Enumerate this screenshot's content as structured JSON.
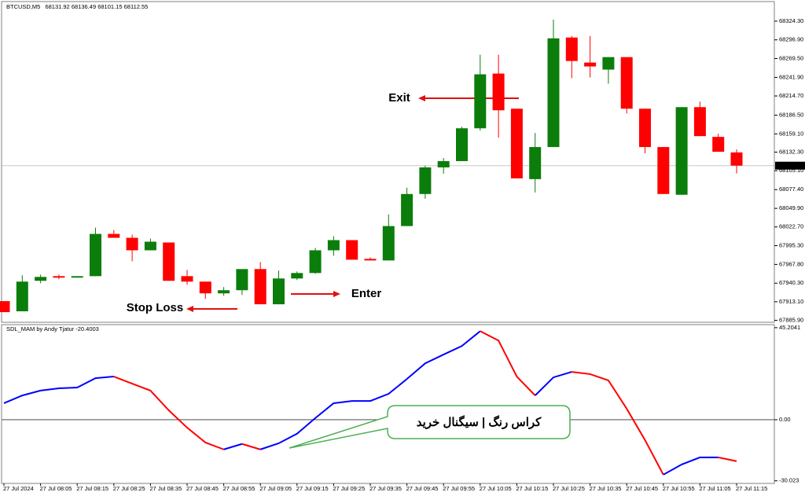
{
  "chart_data": [
    {
      "type": "candlestick",
      "title": "BTCUSD,M5",
      "categories": [
        "27 Jul 2024",
        null,
        "27 Jul 08:05",
        null,
        "27 Jul 08:15",
        null,
        "27 Jul 08:25",
        null,
        "27 Jul 08:35",
        null,
        "27 Jul 08:45",
        null,
        "27 Jul 08:55",
        null,
        "27 Jul 09:05",
        null,
        "27 Jul 09:15",
        null,
        "27 Jul 09:25",
        null,
        "27 Jul 09:35",
        null,
        "27 Jul 09:45",
        null,
        "27 Jul 09:55",
        null,
        "27 Jul 10:05",
        null,
        "27 Jul 10:15",
        null,
        "27 Jul 10:25",
        null,
        "27 Jul 10:35",
        null,
        "27 Jul 10:45",
        null,
        "27 Jul 10:55",
        null,
        "27 Jul 11:05",
        null,
        "27 Jul 11:15"
      ],
      "open": [
        67914.0,
        67899.1,
        67943.8,
        67950.6,
        67948.4,
        67950.6,
        68012.5,
        68006.8,
        67988.5,
        67999.9,
        67950.6,
        67942.6,
        67925.4,
        67930.0,
        67961.0,
        67909.4,
        67947.2,
        67955.2,
        67988.5,
        68003.4,
        67975.9,
        67973.6,
        68024.0,
        68071.0,
        68110.0,
        68119.2,
        68167.3,
        68247.5,
        68196.0,
        68092.8,
        68139.8,
        68300.3,
        68263.6,
        68253.3,
        68271.6,
        68196.0,
        68139.8,
        68069.9,
        68198.3,
        68154.7,
        68131.92
      ],
      "high": [
        67914.0,
        67951.8,
        67952.9,
        67952.9,
        67950.6,
        68021.7,
        68018.3,
        68011.4,
        68005.7,
        67999.9,
        67959.8,
        67942.6,
        67934.6,
        67961.0,
        67971.3,
        67958.7,
        67957.5,
        67991.9,
        68009.1,
        68003.4,
        67978.2,
        68041.2,
        68080.2,
        68112.3,
        68123.7,
        68169.6,
        68275.1,
        68275.1,
        68196.0,
        68160.4,
        68326.6,
        68302.6,
        68302.6,
        68271.6,
        68271.6,
        68196.0,
        68139.8,
        68198.3,
        68206.3,
        68159.3,
        68136.49
      ],
      "low": [
        67897.9,
        67899.1,
        67940.3,
        67946.1,
        67948.4,
        67950.6,
        68006.8,
        67972.4,
        67988.5,
        67943.8,
        67938.0,
        67917.4,
        67922.0,
        67923.1,
        67909.4,
        67909.4,
        67944.9,
        67954.1,
        67980.5,
        67974.7,
        67973.6,
        67973.6,
        68024.0,
        68064.1,
        68100.8,
        68119.2,
        68163.9,
        68153.5,
        68093.9,
        68073.3,
        68139.8,
        68240.7,
        68241.8,
        68232.6,
        68189.1,
        68130.6,
        68071.0,
        68069.9,
        68155.8,
        68132.9,
        68101.15
      ],
      "close": [
        67897.9,
        67942.6,
        67949.5,
        67948.4,
        67950.6,
        68012.5,
        68006.8,
        67988.5,
        68001.1,
        67943.8,
        67942.6,
        67925.4,
        67930.0,
        67961.0,
        67909.4,
        67947.2,
        67955.2,
        67988.5,
        68003.4,
        67974.7,
        67973.6,
        68024.0,
        68071.0,
        68110.0,
        68119.2,
        68167.3,
        68246.4,
        68193.7,
        68093.9,
        68139.8,
        68299.1,
        68265.9,
        68257.9,
        68271.6,
        68196.0,
        68139.8,
        68071.0,
        68198.3,
        68155.8,
        68132.9,
        68112.55
      ],
      "up_color": "#0b7d0b",
      "down_color": "#ff0000",
      "ylim": [
        67883,
        68353
      ],
      "yticks": [
        {
          "value": 68324.3,
          "label": "68324.30"
        },
        {
          "value": 68296.9,
          "label": "68296.90"
        },
        {
          "value": 68269.5,
          "label": "68269.50"
        },
        {
          "value": 68241.9,
          "label": "68241.90"
        },
        {
          "value": 68214.7,
          "label": "68214.70"
        },
        {
          "value": 68186.5,
          "label": "68186.50"
        },
        {
          "value": 68159.1,
          "label": "68159.10"
        },
        {
          "value": 68132.3,
          "label": "68132.30"
        },
        {
          "value": 68105.1,
          "label": "68105.10"
        },
        {
          "value": 68077.4,
          "label": "68077.40"
        },
        {
          "value": 68049.9,
          "label": "68049.90"
        },
        {
          "value": 68022.7,
          "label": "68022.70"
        },
        {
          "value": 67995.3,
          "label": "67995.30"
        },
        {
          "value": 67967.8,
          "label": "67967.80"
        },
        {
          "value": 67940.3,
          "label": "67940.30"
        },
        {
          "value": 67913.1,
          "label": "67913.10"
        },
        {
          "value": 67885.9,
          "label": "67885.90"
        }
      ],
      "arrow_color": "#e01010",
      "annotations": [
        {
          "text": "Exit",
          "color": "#1f3fd8"
        },
        {
          "text": "Enter",
          "color": "#1b9a1b"
        },
        {
          "text": "Stop Loss",
          "color": "#e8201c"
        }
      ]
    },
    {
      "type": "line",
      "title": "SDL_MAM by Andy Tjatur",
      "values": [
        8.1,
        11.9,
        14.3,
        15.4,
        15.8,
        20.4,
        21.2,
        17.7,
        14.3,
        4.6,
        -3.9,
        -11.2,
        -14.6,
        -11.9,
        -14.6,
        -11.6,
        -6.9,
        0.8,
        8.1,
        9.2,
        9.2,
        12.7,
        20.0,
        27.7,
        32.0,
        36.2,
        43.5,
        38.9,
        21.2,
        11.9,
        20.8,
        23.5,
        22.4,
        19.3,
        5.4,
        -10.0,
        -27.0,
        -22.0,
        -18.5,
        -18.5,
        -20.4003
      ],
      "up_color": "#0000ff",
      "down_color": "#ff0000",
      "ylim": [
        -31.3,
        46.7
      ],
      "yticks": [
        45.2041,
        {
          "value": 0,
          "label": "0.00"
        },
        -30.023
      ],
      "annotations": [
        {
          "text": "کراس رنگ | سیگنال خرید"
        }
      ]
    }
  ]
}
